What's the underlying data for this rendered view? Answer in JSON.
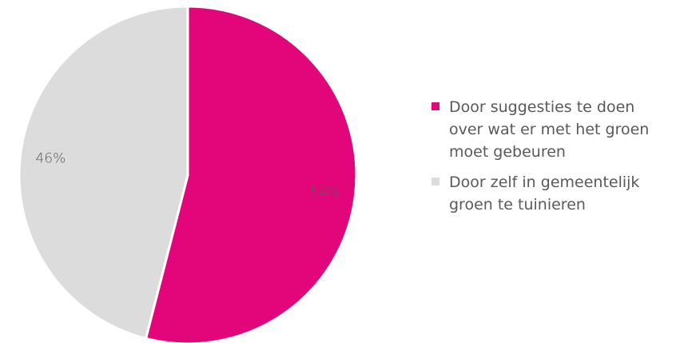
{
  "chart_data": {
    "type": "pie",
    "title": "",
    "slices": [
      {
        "label": "Door suggesties te doen over wat er met het groen moet gebeuren",
        "value": 54,
        "display": "54%",
        "color": "#E2067A"
      },
      {
        "label": "Door zelf in gemeentelijk groen te tuinieren",
        "value": 46,
        "display": "46%",
        "color": "#DCDCDC"
      }
    ],
    "legend_position": "right"
  },
  "legend": {
    "items": [
      {
        "label": "Door suggesties te doen over wat er met het groen moet gebeuren"
      },
      {
        "label": "Door zelf in gemeentelijk groen te tuinieren"
      }
    ]
  }
}
